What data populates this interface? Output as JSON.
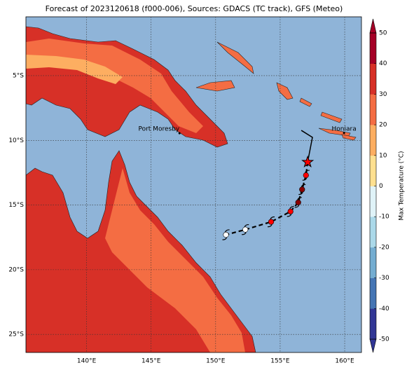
{
  "map": {
    "title": "Forecast of 2023120618 (f000-006), Sources: GDACS (TC track), GFS (Meteo)",
    "lonlim": [
      135.3,
      161.3
    ],
    "latlim": [
      -26.4,
      -0.45
    ],
    "grid": true,
    "xticks": [
      {
        "value": 140,
        "label": "140°E"
      },
      {
        "value": 145,
        "label": "145°E"
      },
      {
        "value": 150,
        "label": "150°E"
      },
      {
        "value": 155,
        "label": "155°E"
      },
      {
        "value": 160,
        "label": "160°E"
      }
    ],
    "yticks": [
      {
        "value": -5,
        "label": "5°S"
      },
      {
        "value": -10,
        "label": "10°S"
      },
      {
        "value": -15,
        "label": "15°S"
      },
      {
        "value": -20,
        "label": "20°S"
      },
      {
        "value": -25,
        "label": "25°S"
      }
    ],
    "places": [
      {
        "name": "Port Moresby",
        "lon": 147.2,
        "lat": -9.45
      },
      {
        "name": "Honiara",
        "lon": 159.95,
        "lat": -9.43
      }
    ],
    "track": {
      "past": {
        "lon": [
          156.64,
          157.5
        ],
        "lat": [
          -9.23,
          -9.77
        ]
      },
      "current": {
        "lon": 157.13,
        "lat": -11.68
      },
      "forecast": {
        "lon": [
          157.0,
          156.7,
          156.4,
          155.8,
          154.3,
          152.3,
          150.8
        ],
        "lat": [
          -12.7,
          -13.8,
          -14.8,
          -15.5,
          -16.3,
          -16.9,
          -17.3
        ],
        "colors": [
          "#ff0000",
          "#8b0000",
          "#8b0000",
          "#ff0000",
          "#ff0000",
          "#ffffff",
          "#ffffff"
        ]
      }
    },
    "colorbar": {
      "label": "Max Temperature (°C)",
      "lim": [
        -50,
        50
      ],
      "ticks": [
        -50,
        -40,
        -30,
        -20,
        -10,
        0,
        10,
        20,
        30,
        40,
        50
      ],
      "colors": [
        "#313695",
        "#4575b4",
        "#74add1",
        "#abd9e9",
        "#e0f3f8",
        "#fee090",
        "#fdae61",
        "#f46d43",
        "#d73027",
        "#a50026"
      ]
    }
  }
}
